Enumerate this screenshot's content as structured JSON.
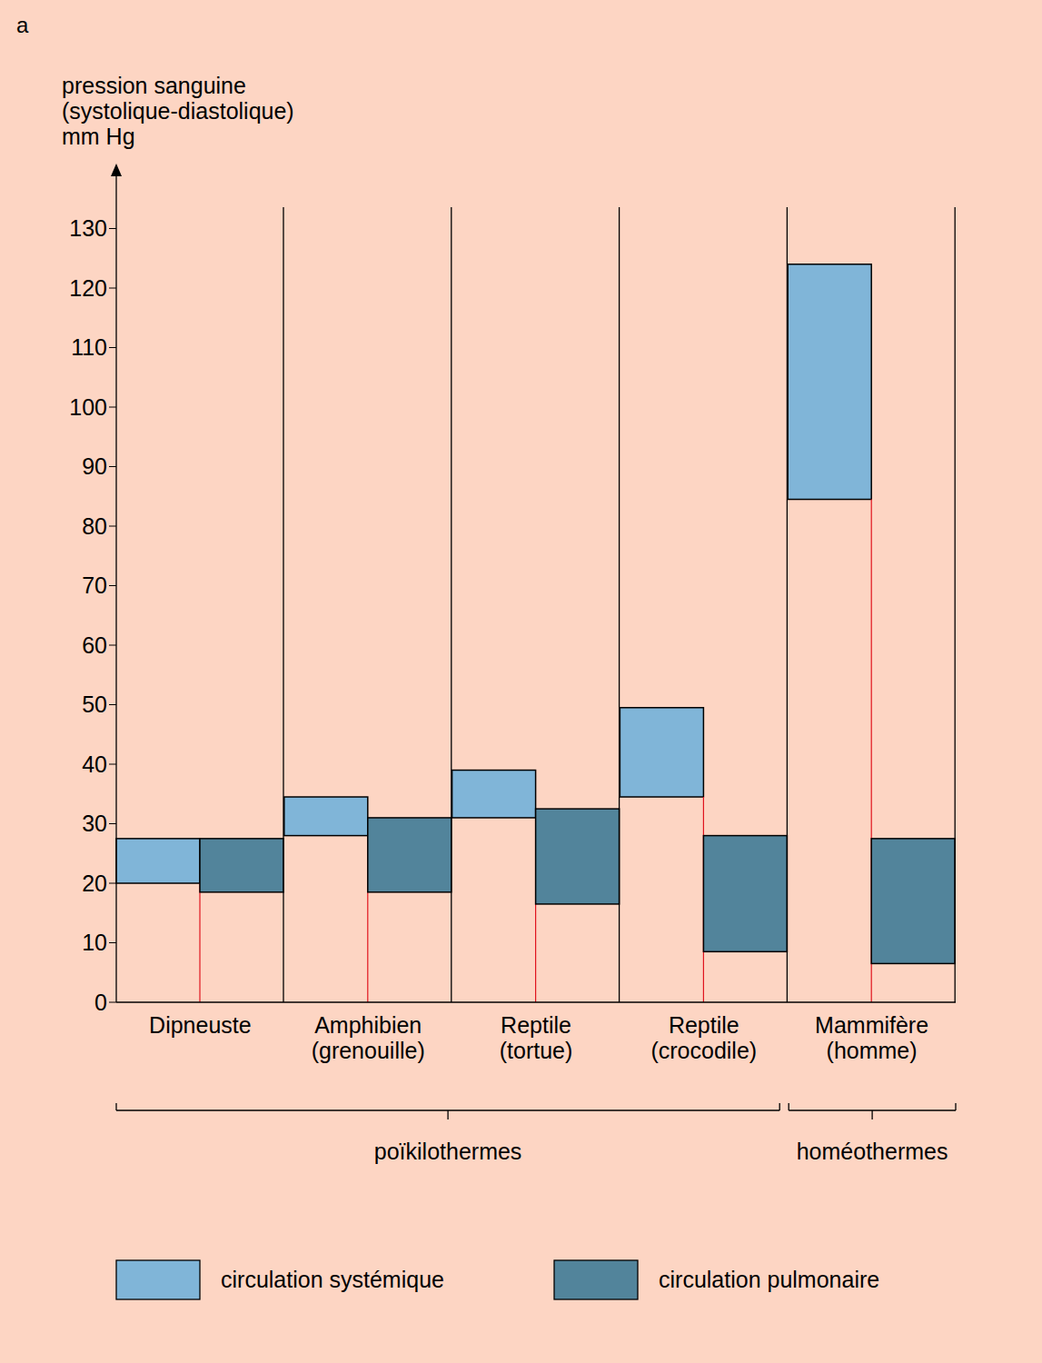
{
  "chart_data": {
    "type": "bar",
    "annotations": [
      "a"
    ],
    "ylabel": "pression sanguine\n(systolique-diastolique)\nmm Hg",
    "categories": [
      "Dipneuste",
      "Amphibien (grenouille)",
      "Reptile (tortue)",
      "Reptile (crocodile)",
      "Mammifère (homme)"
    ],
    "series": [
      {
        "name": "circulation systémique",
        "color": "#80b5d8",
        "values": [
          [
            20,
            27.5
          ],
          [
            28,
            34.5
          ],
          [
            31,
            39
          ],
          [
            34.5,
            49.5
          ],
          [
            84.5,
            124
          ]
        ]
      },
      {
        "name": "circulation pulmonaire",
        "color": "#52849b",
        "values": [
          [
            18.5,
            27.5
          ],
          [
            18.5,
            31
          ],
          [
            16.5,
            32.5
          ],
          [
            8.5,
            28
          ],
          [
            6.5,
            27.5
          ]
        ]
      }
    ],
    "groups": [
      {
        "label": "poïkilothermes",
        "categories": [
          "Dipneuste",
          "Amphibien (grenouille)",
          "Reptile (tortue)",
          "Reptile (crocodile)"
        ]
      },
      {
        "label": "homéothermes",
        "categories": [
          "Mammifère (homme)"
        ]
      }
    ],
    "ylim": [
      0,
      140
    ],
    "yticks": [
      0,
      10,
      20,
      30,
      40,
      50,
      60,
      70,
      80,
      90,
      100,
      110,
      120,
      130
    ],
    "legend": "bottom"
  }
}
